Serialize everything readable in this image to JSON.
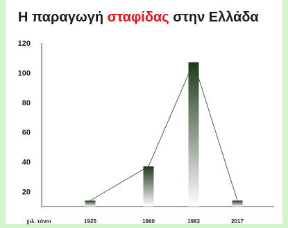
{
  "chart_data": {
    "type": "bar",
    "title_parts": [
      "Η παραγωγή ",
      "σταφίδας",
      " στην Ελλάδα"
    ],
    "unit_label": "χιλ. τόνοι",
    "categories": [
      "1925",
      "1960",
      "1983",
      "2017"
    ],
    "values": [
      14,
      37,
      107,
      14
    ],
    "y_ticks": [
      "120",
      "100",
      "80",
      "60",
      "40",
      "20"
    ],
    "ylim": [
      10,
      120
    ],
    "connecting_line": true,
    "grid": false,
    "bar_gradient": [
      "#1e3a1a",
      "#ffffff"
    ],
    "accent_color": "#e0151b"
  }
}
